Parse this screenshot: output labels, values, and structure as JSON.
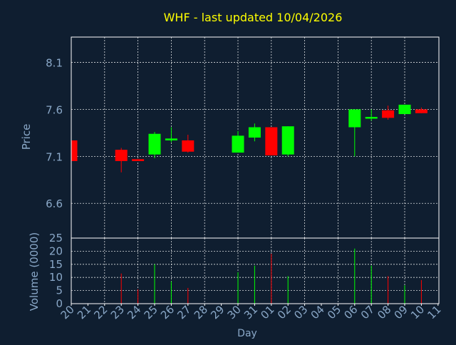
{
  "chart_data": {
    "type": "candlestick",
    "title": "WHF - last updated 10/04/2026",
    "xlabel": "Day",
    "colors": {
      "background": "#0f1e30",
      "plot_border": "#ffffff",
      "grid": "#ffffff",
      "title": "#ffff00",
      "axis_text": "#8aa8c8",
      "up": "#00ff00",
      "down": "#ff0000"
    },
    "x_tick_labels": [
      "20",
      "21",
      "22",
      "23",
      "24",
      "25",
      "26",
      "27",
      "28",
      "29",
      "30",
      "31",
      "01",
      "02",
      "03",
      "04",
      "05",
      "06",
      "07",
      "08",
      "09",
      "10",
      "11"
    ],
    "price_panel": {
      "ylabel": "Price",
      "ylim": [
        6.23,
        8.37
      ],
      "yticks": [
        6.6,
        7.1,
        7.6,
        8.1
      ],
      "ytick_labels": [
        "6.6",
        "7.1",
        "7.6",
        "8.1"
      ],
      "grid": true
    },
    "volume_panel": {
      "ylabel": "Volume (0000)",
      "ylim": [
        0,
        25
      ],
      "yticks": [
        0,
        5,
        10,
        15,
        20,
        25
      ],
      "ytick_labels": [
        "0",
        "5",
        "10",
        "15",
        "20",
        "25"
      ],
      "grid": true
    },
    "candles": [
      {
        "day": "20",
        "open": 7.27,
        "high": 7.27,
        "low": 7.05,
        "close": 7.05,
        "direction": "down",
        "volume": 0
      },
      {
        "day": "23",
        "open": 7.17,
        "high": 7.19,
        "low": 6.93,
        "close": 7.05,
        "direction": "down",
        "volume": 11.5
      },
      {
        "day": "24",
        "open": 7.07,
        "high": 7.07,
        "low": 7.05,
        "close": 7.05,
        "direction": "down",
        "volume": 5.5
      },
      {
        "day": "25",
        "open": 7.12,
        "high": 7.36,
        "low": 7.08,
        "close": 7.34,
        "direction": "up",
        "volume": 15
      },
      {
        "day": "26",
        "open": 7.27,
        "high": 7.41,
        "low": 7.25,
        "close": 7.29,
        "direction": "up",
        "volume": 8.5
      },
      {
        "day": "27",
        "open": 7.27,
        "high": 7.33,
        "low": 7.14,
        "close": 7.15,
        "direction": "down",
        "volume": 6
      },
      {
        "day": "30",
        "open": 7.14,
        "high": 7.37,
        "low": 7.14,
        "close": 7.32,
        "direction": "up",
        "volume": 12
      },
      {
        "day": "31",
        "open": 7.3,
        "high": 7.45,
        "low": 7.26,
        "close": 7.41,
        "direction": "up",
        "volume": 14.5
      },
      {
        "day": "01",
        "open": 7.41,
        "high": 7.41,
        "low": 7.11,
        "close": 7.11,
        "direction": "down",
        "volume": 19
      },
      {
        "day": "02",
        "open": 7.12,
        "high": 7.42,
        "low": 7.1,
        "close": 7.42,
        "direction": "up",
        "volume": 10.5
      },
      {
        "day": "06",
        "open": 7.41,
        "high": 7.6,
        "low": 7.1,
        "close": 7.6,
        "direction": "up",
        "volume": 21
      },
      {
        "day": "07",
        "open": 7.51,
        "high": 7.6,
        "low": 7.48,
        "close": 7.52,
        "direction": "up",
        "volume": 14.5
      },
      {
        "day": "08",
        "open": 7.59,
        "high": 7.64,
        "low": 7.49,
        "close": 7.51,
        "direction": "down",
        "volume": 10.5
      },
      {
        "day": "09",
        "open": 7.55,
        "high": 7.65,
        "low": 7.55,
        "close": 7.65,
        "direction": "up",
        "volume": 7
      },
      {
        "day": "10",
        "open": 7.6,
        "high": 7.62,
        "low": 7.56,
        "close": 7.56,
        "direction": "down",
        "volume": 9
      }
    ]
  }
}
